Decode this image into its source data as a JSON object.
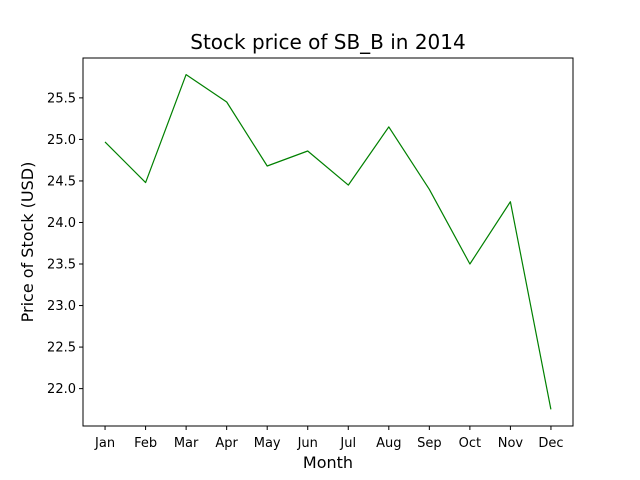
{
  "chart_data": {
    "type": "line",
    "title": "Stock price of SB_B in 2014",
    "xlabel": "Month",
    "ylabel": "Price of Stock (USD)",
    "categories": [
      "Jan",
      "Feb",
      "Mar",
      "Apr",
      "May",
      "Jun",
      "Jul",
      "Aug",
      "Sep",
      "Oct",
      "Nov",
      "Dec"
    ],
    "series": [
      {
        "values": [
          24.97,
          24.48,
          25.78,
          25.45,
          24.68,
          24.86,
          24.45,
          25.15,
          24.4,
          23.5,
          24.25,
          21.75
        ],
        "color": "#008000"
      }
    ],
    "yticks": [
      22.0,
      22.5,
      23.0,
      23.5,
      24.0,
      24.5,
      25.0,
      25.5
    ],
    "ylim": [
      21.55,
      25.98
    ],
    "grid": false,
    "legend": "none"
  }
}
